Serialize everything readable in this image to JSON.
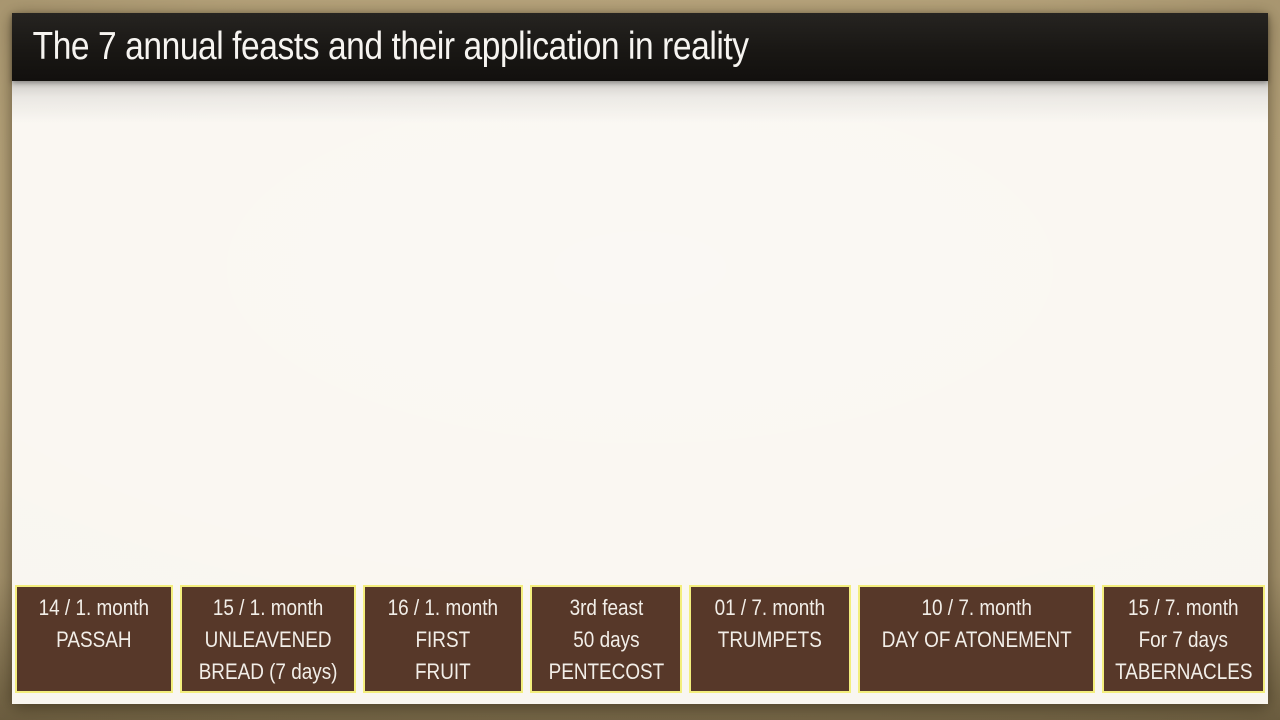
{
  "slide": {
    "title": "The 7 annual feasts and their application in reality",
    "feast_boxes": [
      {
        "name": "passah",
        "lines": [
          "14 / 1. month",
          "PASSAH"
        ]
      },
      {
        "name": "unleavened-bread",
        "lines": [
          "15 / 1. month",
          "UNLEAVENED",
          "BREAD (7 days)"
        ]
      },
      {
        "name": "first-fruit",
        "lines": [
          "16 / 1. month",
          "FIRST",
          "FRUIT"
        ]
      },
      {
        "name": "pentecost",
        "lines": [
          "3rd feast",
          "50 days",
          "PENTECOST"
        ]
      },
      {
        "name": "trumpets",
        "lines": [
          "01 / 7. month",
          "TRUMPETS"
        ]
      },
      {
        "name": "day-of-atonement",
        "lines": [
          "10 / 7. month",
          "DAY OF ATONEMENT"
        ]
      },
      {
        "name": "tabernacles",
        "lines": [
          "15 / 7. month",
          "For 7 days",
          "TABERNACLES"
        ]
      }
    ],
    "colors": {
      "frame_background": "#b4a179",
      "title_bar_background": "#191714",
      "title_text": "#f6f4f0",
      "slide_background": "#f9f6f0",
      "box_background": "#573829",
      "box_border": "#f3ee7d",
      "box_text": "#f2eee8"
    }
  }
}
